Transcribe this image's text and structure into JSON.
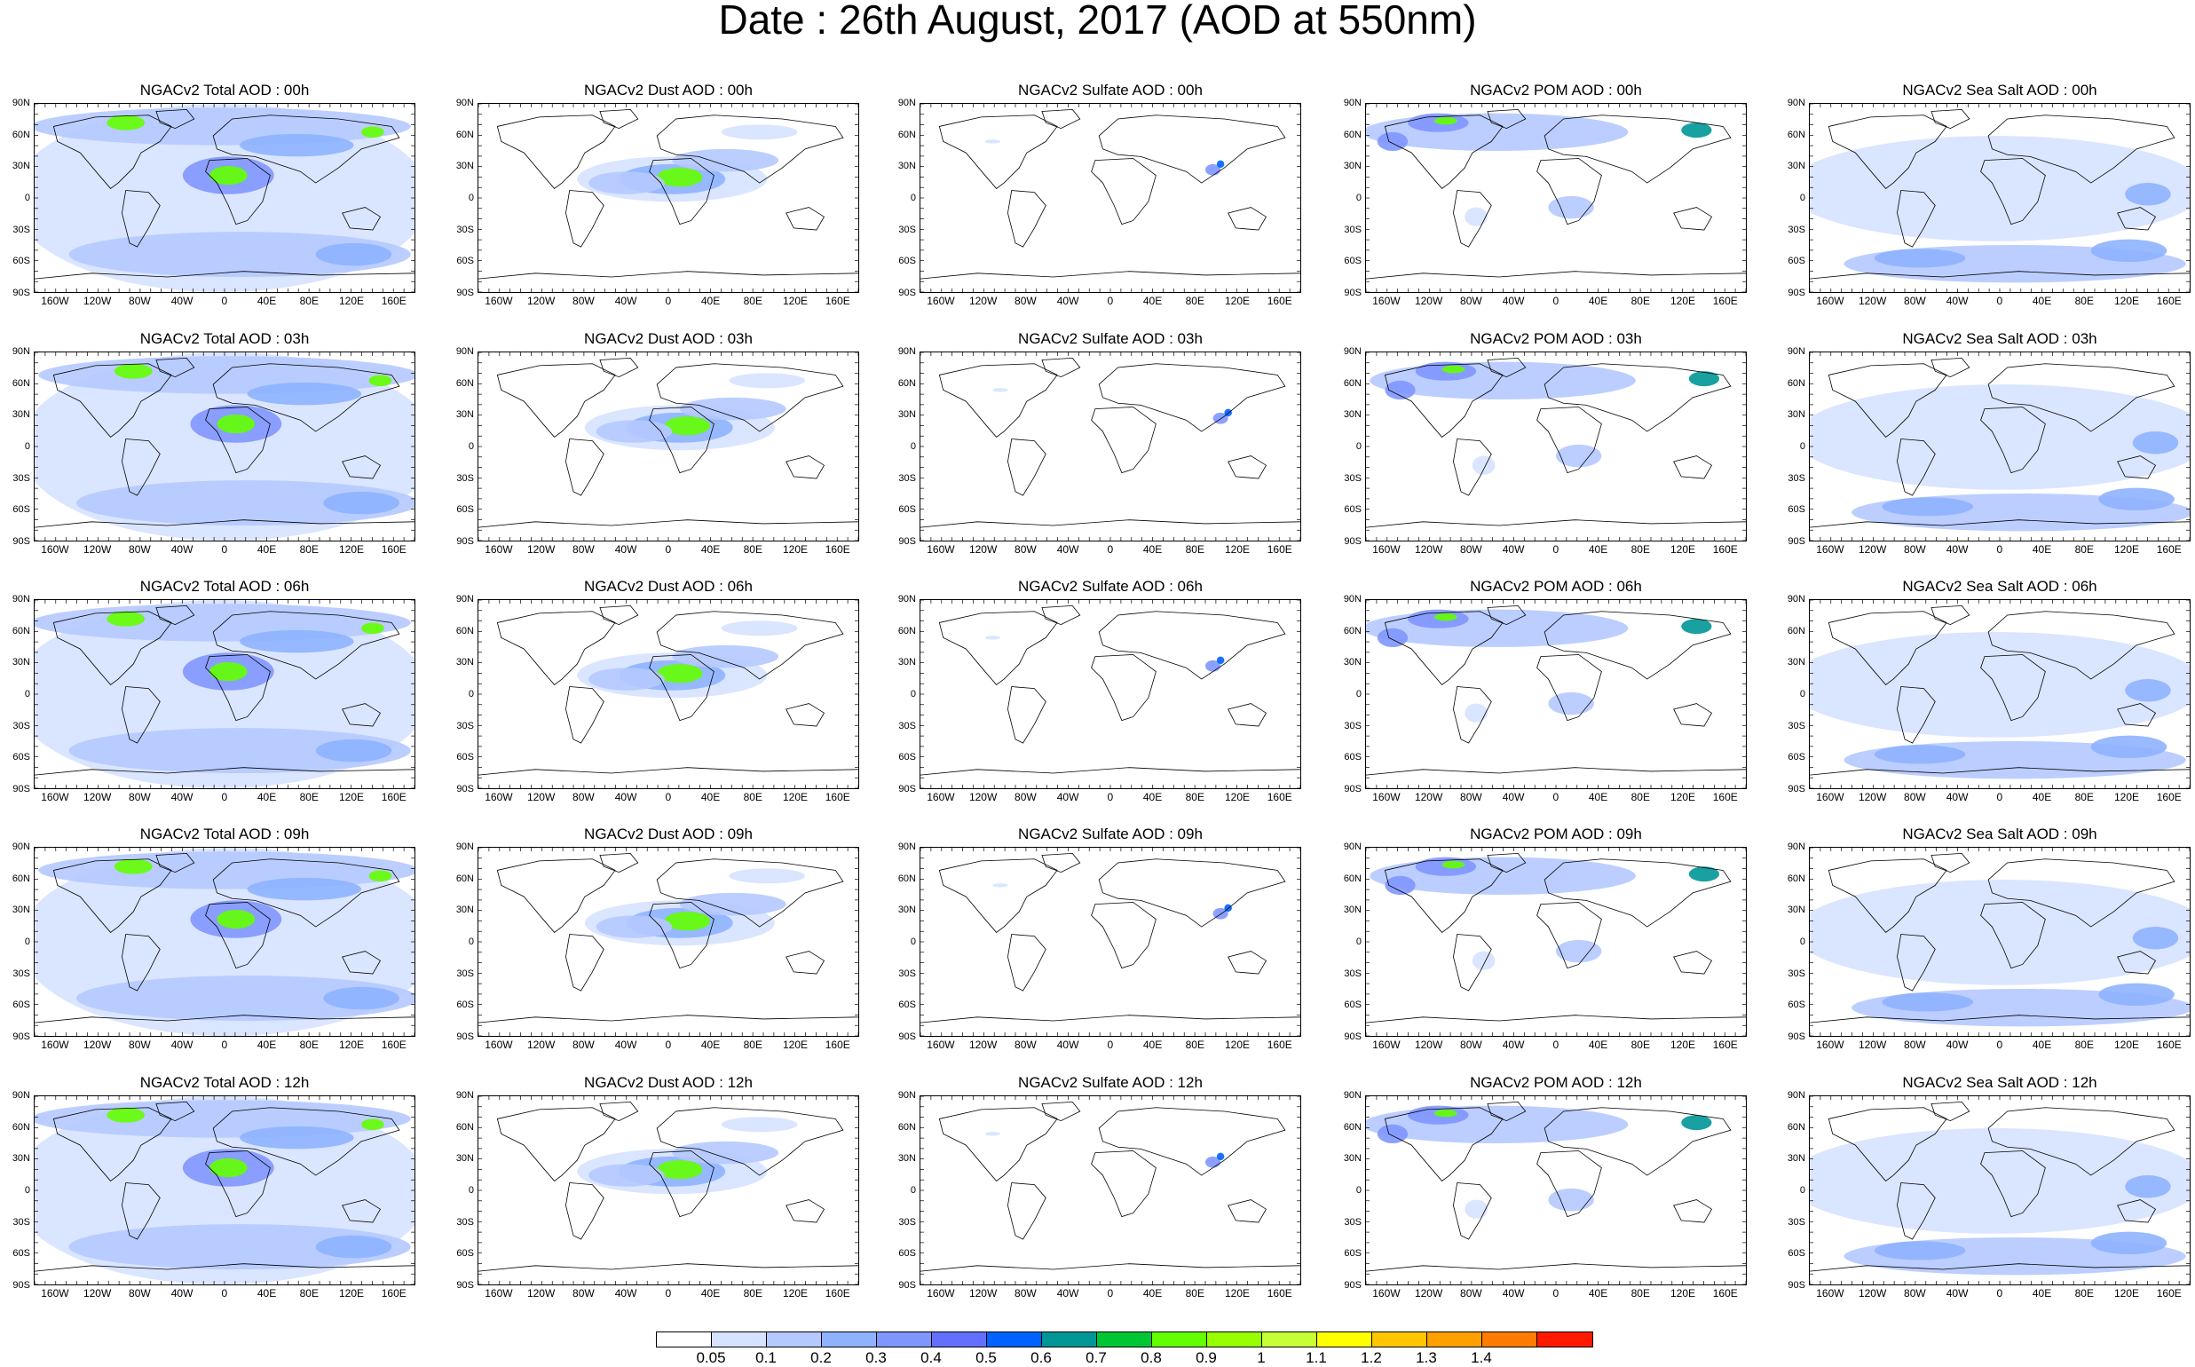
{
  "title": "Date : 26th August, 2017 (AOD at 550nm)",
  "lat_labels": [
    "90N",
    "60N",
    "30N",
    "0",
    "30S",
    "60S",
    "90S"
  ],
  "lon_labels": [
    "160W",
    "120W",
    "80W",
    "40W",
    "0",
    "40E",
    "80E",
    "120E",
    "160E"
  ],
  "panels": [
    [
      "NGACv2 Total AOD : 00h",
      "NGACv2 Dust AOD : 00h",
      "NGACv2 Sulfate AOD : 00h",
      "NGACv2 POM AOD : 00h",
      "NGACv2 Sea Salt AOD : 00h"
    ],
    [
      "NGACv2 Total AOD : 03h",
      "NGACv2 Dust AOD : 03h",
      "NGACv2 Sulfate AOD : 03h",
      "NGACv2 POM AOD : 03h",
      "NGACv2 Sea Salt AOD : 03h"
    ],
    [
      "NGACv2 Total AOD : 06h",
      "NGACv2 Dust AOD : 06h",
      "NGACv2 Sulfate AOD : 06h",
      "NGACv2 POM AOD : 06h",
      "NGACv2 Sea Salt AOD : 06h"
    ],
    [
      "NGACv2 Total AOD : 09h",
      "NGACv2 Dust AOD : 09h",
      "NGACv2 Sulfate AOD : 09h",
      "NGACv2 POM AOD : 09h",
      "NGACv2 Sea Salt  AOD : 09h"
    ],
    [
      "NGACv2 Total AOD : 12h",
      "NGACv2 Dust AOD : 12h",
      "NGACv2 Sulfate AOD : 12h",
      "NGACv2 POM  AOD : 12h",
      "NGACv2 Sea Salt AOD : 12h"
    ]
  ],
  "colorbar": {
    "labels": [
      "0.05",
      "0.1",
      "0.2",
      "0.3",
      "0.4",
      "0.5",
      "0.6",
      "0.7",
      "0.8",
      "0.9",
      "1",
      "1.1",
      "1.2",
      "1.3",
      "1.4"
    ],
    "colors": [
      "#ffffff",
      "#d6e2ff",
      "#b5c9ff",
      "#8eb2ff",
      "#7f96ff",
      "#6370ff",
      "#0063ff",
      "#009696",
      "#00c633",
      "#63ff00",
      "#96ff00",
      "#c6ff33",
      "#ffff00",
      "#ffc600",
      "#ffa000",
      "#ff7c00",
      "#ff1900"
    ]
  }
}
